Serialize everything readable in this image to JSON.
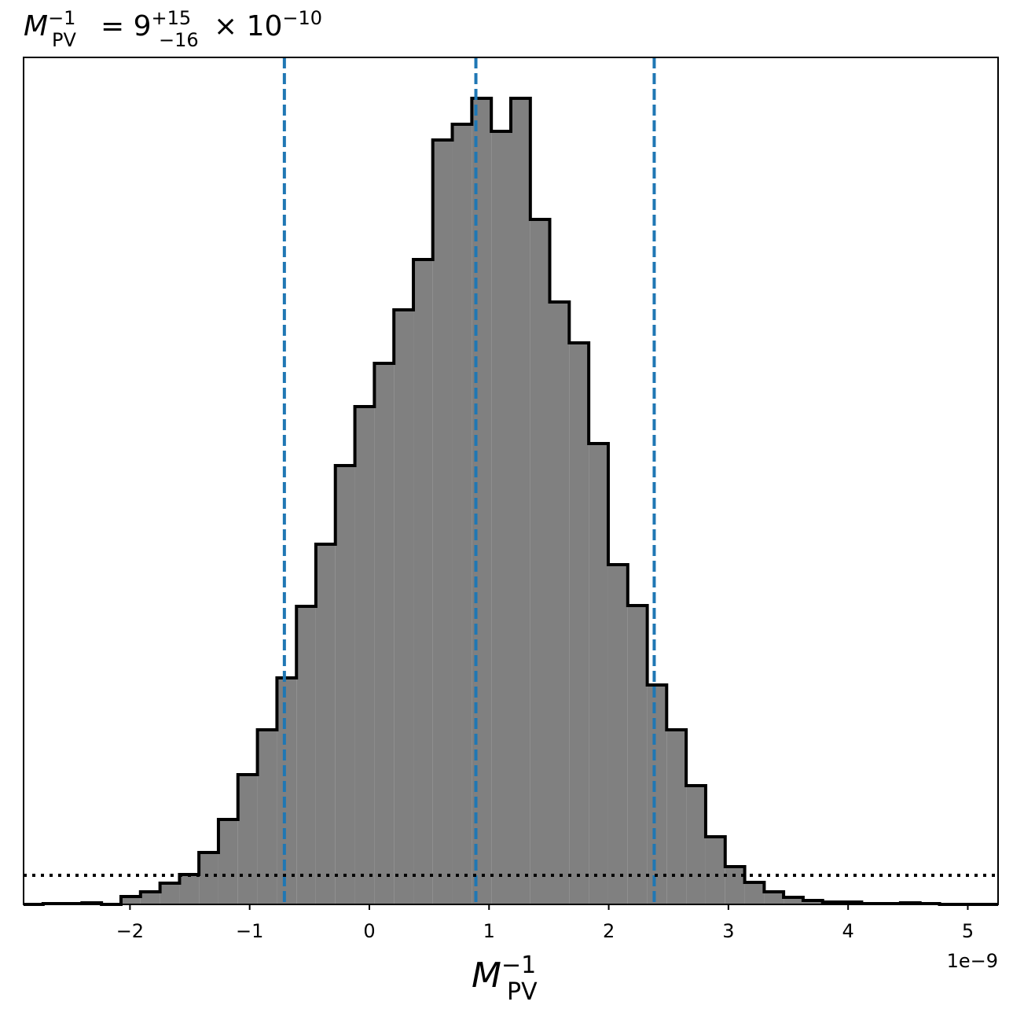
{
  "chart_data": {
    "type": "histogram",
    "title": {
      "symbol": "M",
      "subscript": "PV",
      "superscript": "−1",
      "equals": "= 9",
      "upper": "+15",
      "lower": "−16",
      "times": "× 10",
      "exponent": "−10"
    },
    "xlabel": {
      "symbol": "M",
      "subscript": "PV",
      "superscript": "−1"
    },
    "offset_label": "1e−9",
    "bins": [
      -2.889,
      -2.726,
      -2.563,
      -2.401,
      -2.238,
      -2.075,
      -1.912,
      -1.749,
      -1.586,
      -1.424,
      -1.261,
      -1.098,
      -0.935,
      -0.772,
      -0.609,
      -0.447,
      -0.284,
      -0.121,
      0.042,
      0.205,
      0.368,
      0.53,
      0.693,
      0.856,
      1.019,
      1.182,
      1.345,
      1.507,
      1.67,
      1.833,
      1.996,
      2.159,
      2.322,
      2.484,
      2.647,
      2.81,
      2.973,
      3.136,
      3.299,
      3.461,
      3.624,
      3.787,
      3.95,
      4.113,
      4.276,
      4.438,
      4.601,
      4.764,
      4.927,
      5.09,
      5.253
    ],
    "values": [
      0,
      1,
      1,
      2,
      0,
      10,
      16,
      27,
      38,
      66,
      108,
      165,
      222,
      288,
      379,
      458,
      558,
      633,
      688,
      756,
      820,
      972,
      992,
      1025,
      983,
      1025,
      871,
      766,
      714,
      586,
      432,
      380,
      279,
      222,
      151,
      86,
      48,
      28,
      16,
      9,
      5,
      3,
      3,
      1,
      1,
      2,
      1,
      0,
      0,
      0
    ],
    "color": "#808080",
    "edgecolor": "#000000",
    "xlim": [
      -2.889,
      5.253
    ],
    "ylim": [
      0,
      1077
    ],
    "xticks": [
      {
        "value": -2,
        "label": "−2"
      },
      {
        "value": -1,
        "label": "−1"
      },
      0,
      1,
      2,
      3,
      4,
      5
    ],
    "vlines": [
      -0.71,
      0.89,
      2.38
    ],
    "vline_color": "#1f77b4",
    "hline": 37
  }
}
